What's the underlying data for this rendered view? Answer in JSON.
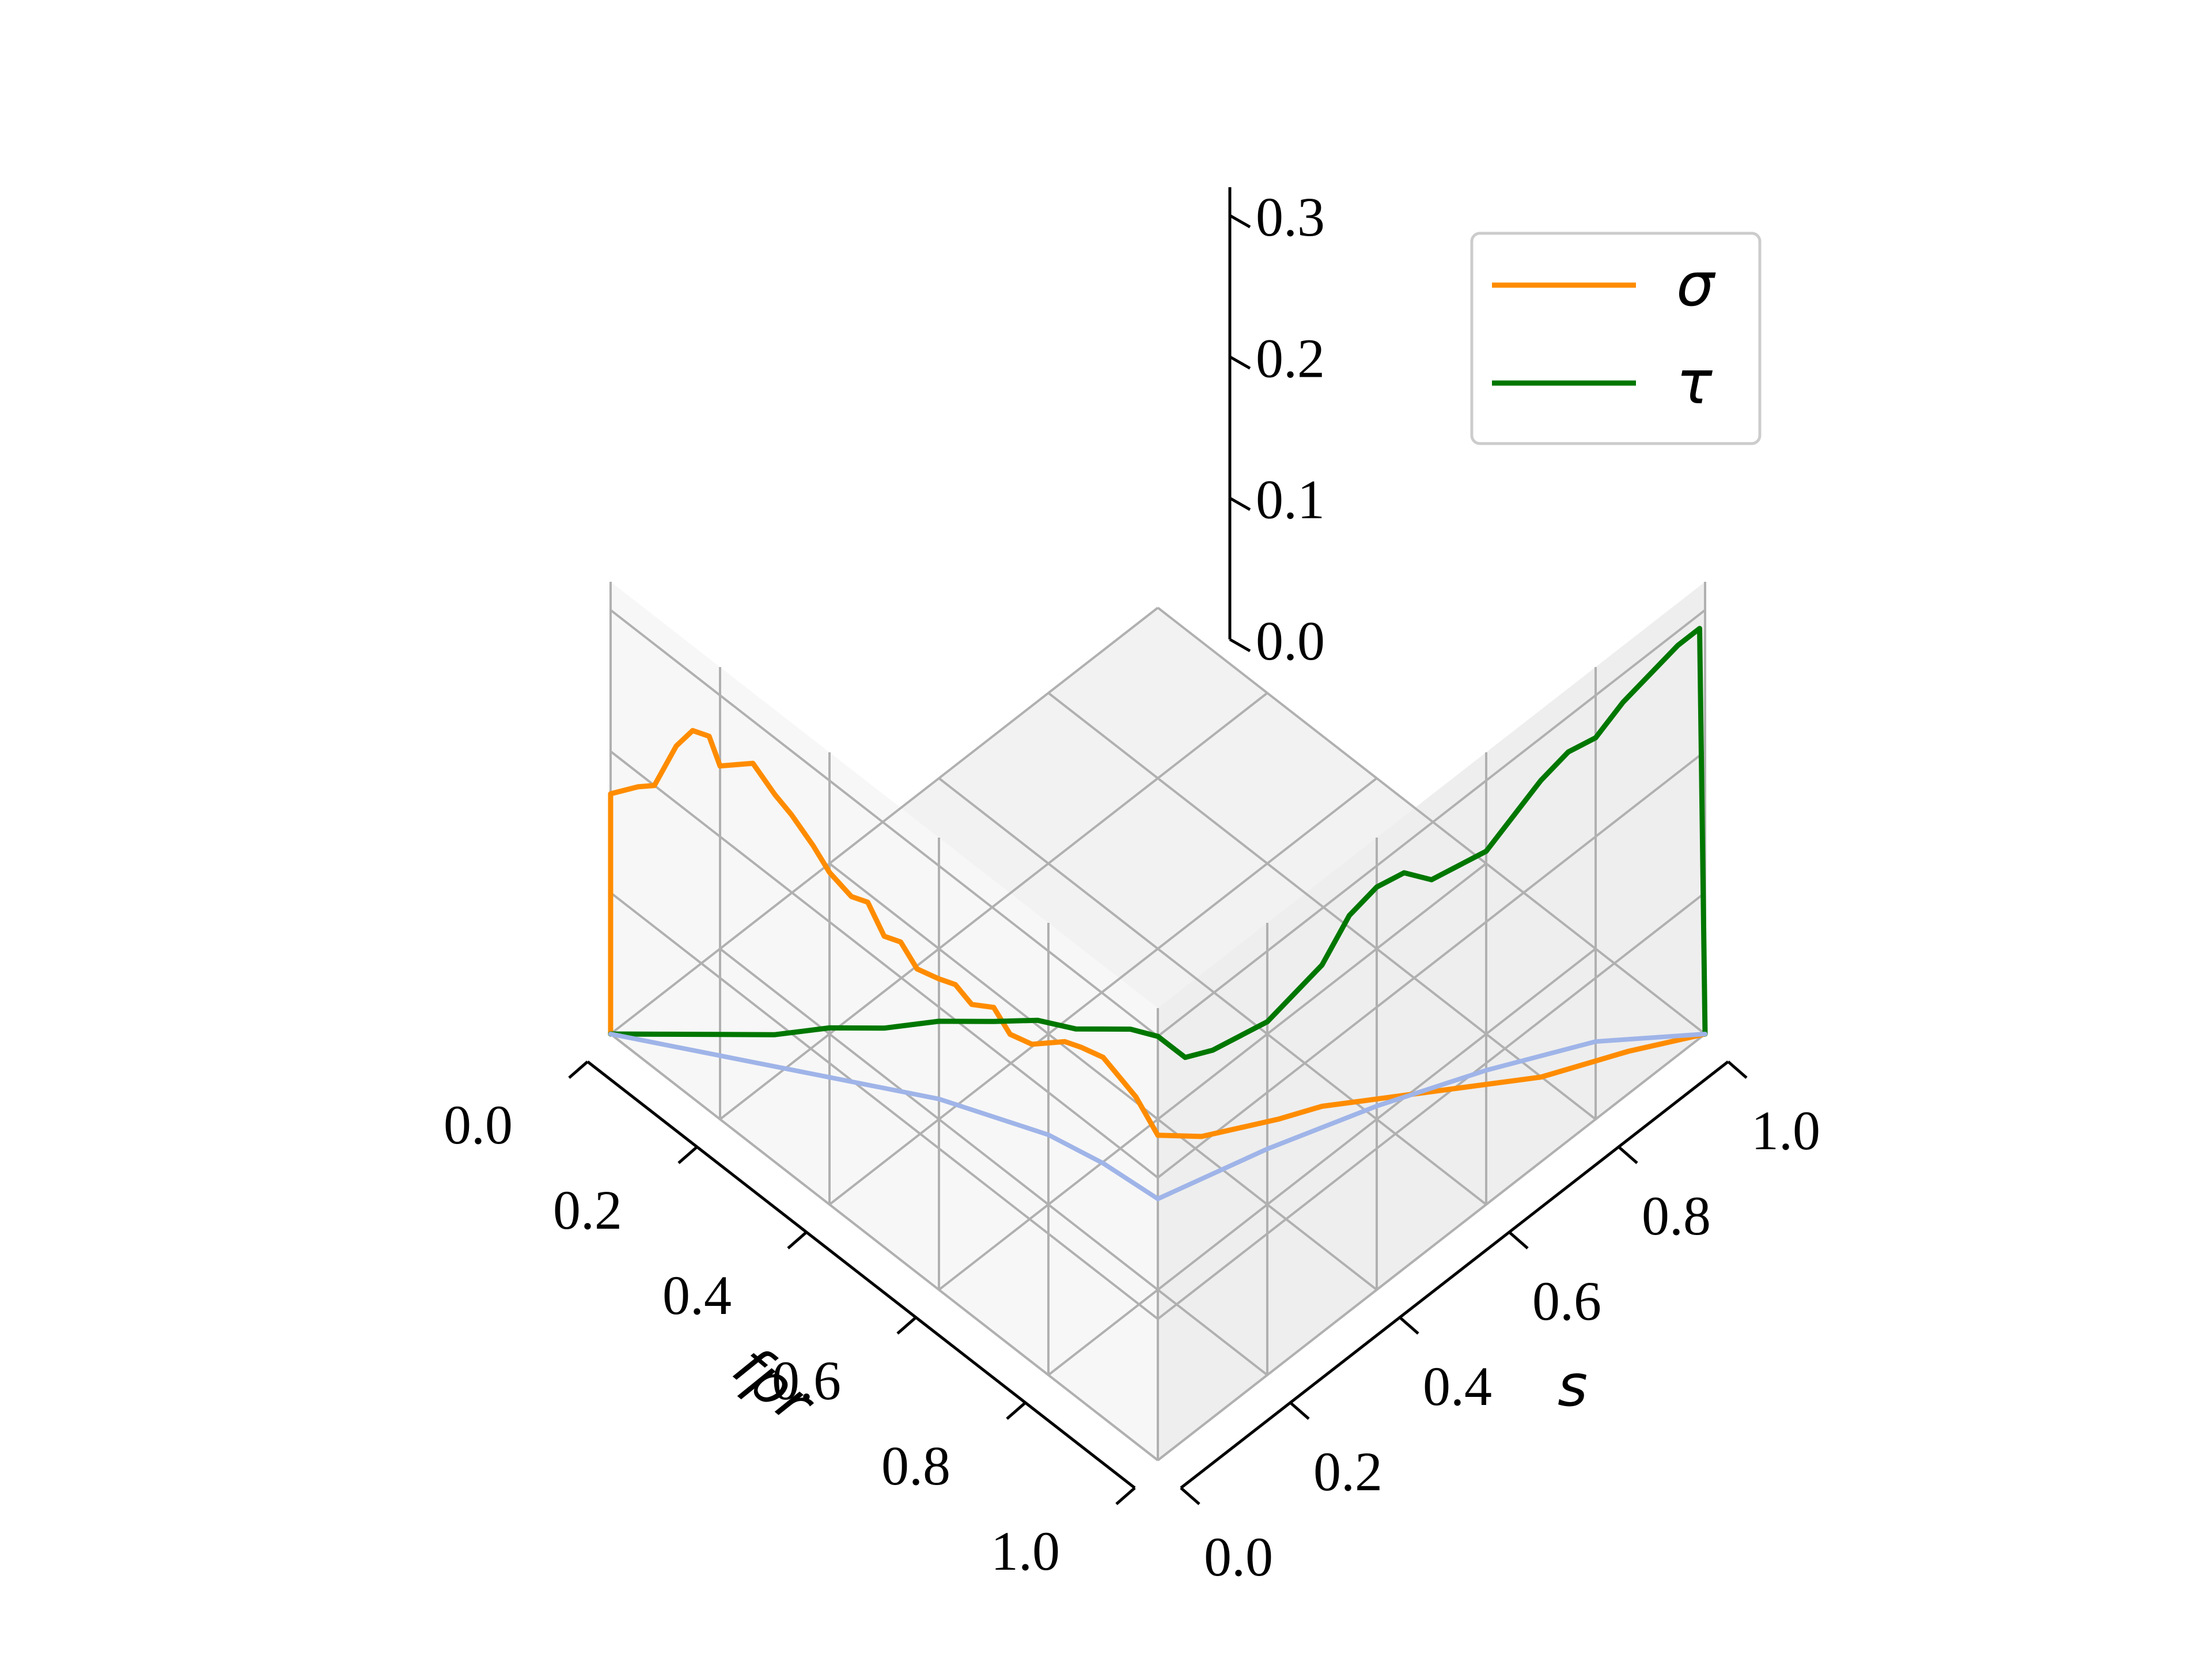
{
  "chart_data": {
    "type": "line",
    "projection": "3d",
    "x_axis": {
      "label": "fpr",
      "ticks": [
        "0.0",
        "0.2",
        "0.4",
        "0.6",
        "0.8",
        "1.0"
      ],
      "range": [
        0,
        1
      ]
    },
    "y_axis": {
      "label": "s",
      "ticks": [
        "0.0",
        "0.2",
        "0.4",
        "0.6",
        "0.8",
        "1.0"
      ],
      "range": [
        0,
        1
      ]
    },
    "z_axis": {
      "label": "",
      "ticks": [
        "0.0",
        "0.1",
        "0.2",
        "0.3"
      ],
      "range": [
        0,
        0.32
      ]
    },
    "grid": true,
    "legend": {
      "placement": "top-right",
      "entries": [
        {
          "key": "sigma",
          "label": "σ",
          "color": "#ff8c00"
        },
        {
          "key": "tau",
          "label": "τ",
          "color": "#007700"
        }
      ]
    },
    "series": [
      {
        "key": "sigma",
        "color": "#ff8c00",
        "plane": "s=0",
        "points": [
          [
            0,
            0
          ],
          [
            0,
            0.17
          ],
          [
            0.05,
            0.19
          ],
          [
            0.08,
            0.2
          ],
          [
            0.1,
            0.22
          ],
          [
            0.12,
            0.24
          ],
          [
            0.15,
            0.26
          ],
          [
            0.18,
            0.265
          ],
          [
            0.2,
            0.25
          ],
          [
            0.23,
            0.26
          ],
          [
            0.26,
            0.27
          ],
          [
            0.3,
            0.26
          ],
          [
            0.33,
            0.255
          ],
          [
            0.37,
            0.245
          ],
          [
            0.4,
            0.235
          ],
          [
            0.44,
            0.23
          ],
          [
            0.47,
            0.235
          ],
          [
            0.5,
            0.22
          ],
          [
            0.53,
            0.225
          ],
          [
            0.56,
            0.215
          ],
          [
            0.6,
            0.22
          ],
          [
            0.63,
            0.225
          ],
          [
            0.66,
            0.22
          ],
          [
            0.7,
            0.23
          ],
          [
            0.73,
            0.22
          ],
          [
            0.77,
            0.225
          ],
          [
            0.8,
            0.235
          ],
          [
            0.83,
            0.245
          ],
          [
            0.86,
            0.25
          ],
          [
            0.9,
            0.255
          ],
          [
            0.93,
            0.25
          ],
          [
            0.96,
            0.245
          ],
          [
            1.0,
            0.23
          ]
        ]
      },
      {
        "key": "sigma",
        "color": "#ff8c00",
        "plane": "fpr=1",
        "points": [
          [
            0,
            0.23
          ],
          [
            0.08,
            0.205
          ],
          [
            0.15,
            0.19
          ],
          [
            0.22,
            0.175
          ],
          [
            0.3,
            0.16
          ],
          [
            0.38,
            0.14
          ],
          [
            0.46,
            0.12
          ],
          [
            0.54,
            0.1
          ],
          [
            0.62,
            0.08
          ],
          [
            0.7,
            0.06
          ],
          [
            0.78,
            0.045
          ],
          [
            0.86,
            0.03
          ],
          [
            0.93,
            0.015
          ],
          [
            1.0,
            0
          ]
        ]
      },
      {
        "key": "tau",
        "color": "#007700",
        "plane": "s=0",
        "points": [
          [
            0,
            0
          ],
          [
            0.1,
            0.03
          ],
          [
            0.2,
            0.06
          ],
          [
            0.3,
            0.09
          ],
          [
            0.4,
            0.125
          ],
          [
            0.5,
            0.155
          ],
          [
            0.6,
            0.19
          ],
          [
            0.7,
            0.22
          ],
          [
            0.78,
            0.245
          ],
          [
            0.85,
            0.26
          ],
          [
            0.9,
            0.275
          ],
          [
            0.95,
            0.29
          ],
          [
            1.0,
            0.3
          ]
        ]
      },
      {
        "key": "tau",
        "color": "#007700",
        "plane": "fpr=1",
        "points": [
          [
            0,
            0.3
          ],
          [
            0.05,
            0.27
          ],
          [
            0.1,
            0.26
          ],
          [
            0.15,
            0.255
          ],
          [
            0.2,
            0.25
          ],
          [
            0.25,
            0.255
          ],
          [
            0.3,
            0.26
          ],
          [
            0.35,
            0.28
          ],
          [
            0.4,
            0.285
          ],
          [
            0.45,
            0.28
          ],
          [
            0.5,
            0.26
          ],
          [
            0.55,
            0.255
          ],
          [
            0.6,
            0.25
          ],
          [
            0.65,
            0.26
          ],
          [
            0.7,
            0.27
          ],
          [
            0.75,
            0.275
          ],
          [
            0.8,
            0.27
          ],
          [
            0.85,
            0.28
          ],
          [
            0.9,
            0.285
          ],
          [
            0.95,
            0.29
          ],
          [
            0.99,
            0.29
          ],
          [
            1.0,
            0
          ]
        ]
      },
      {
        "key": "baseline",
        "color": "#9fb4e8",
        "plane": "s=0",
        "points": [
          [
            0,
            0
          ],
          [
            0.2,
            0.045
          ],
          [
            0.4,
            0.09
          ],
          [
            0.6,
            0.135
          ],
          [
            0.8,
            0.17
          ],
          [
            0.9,
            0.18
          ],
          [
            1.0,
            0.185
          ]
        ]
      },
      {
        "key": "baseline",
        "color": "#9fb4e8",
        "plane": "fpr=1",
        "points": [
          [
            0,
            0.185
          ],
          [
            0.2,
            0.16
          ],
          [
            0.4,
            0.13
          ],
          [
            0.6,
            0.095
          ],
          [
            0.8,
            0.055
          ],
          [
            1.0,
            0
          ]
        ]
      }
    ]
  }
}
